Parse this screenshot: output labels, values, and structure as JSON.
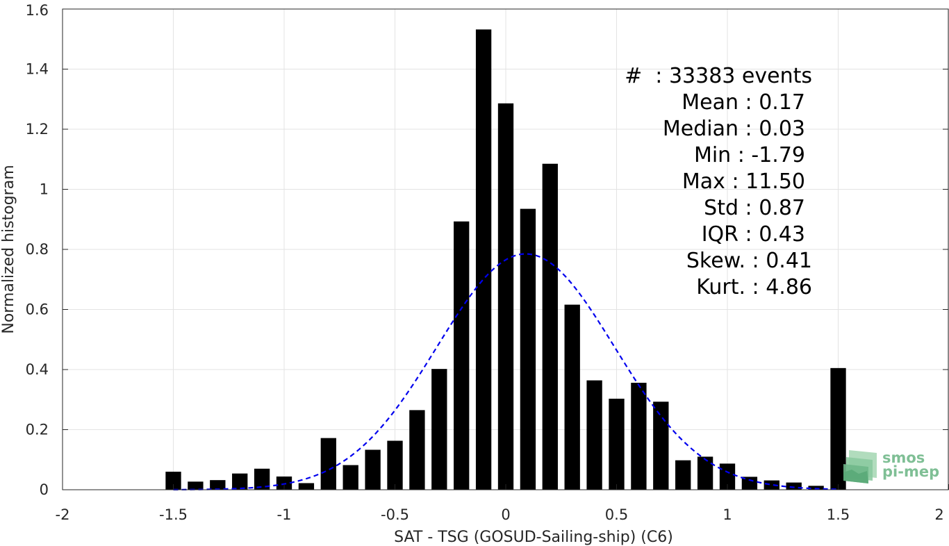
{
  "chart_data": {
    "type": "bar",
    "xlabel": "SAT - TSG (GOSUD-Sailing-ship) (C6)",
    "ylabel": "Normalized histogram",
    "xlim": [
      -2,
      2
    ],
    "ylim": [
      0,
      1.6
    ],
    "xticks": [
      "-2",
      "-1.5",
      "-1",
      "-0.5",
      "0",
      "0.5",
      "1",
      "1.5",
      "2"
    ],
    "yticks": [
      "0",
      "0.2",
      "0.4",
      "0.6",
      "0.8",
      "1",
      "1.2",
      "1.4",
      "1.6"
    ],
    "grid": true,
    "bar_color": "#000000",
    "bin_width": 0.1,
    "x": [
      -1.5,
      -1.4,
      -1.3,
      -1.2,
      -1.1,
      -1.0,
      -0.9,
      -0.8,
      -0.7,
      -0.6,
      -0.5,
      -0.4,
      -0.3,
      -0.2,
      -0.1,
      0.0,
      0.1,
      0.2,
      0.3,
      0.4,
      0.5,
      0.6,
      0.7,
      0.8,
      0.9,
      1.0,
      1.1,
      1.2,
      1.3,
      1.4,
      1.5
    ],
    "values": [
      0.06,
      0.027,
      0.032,
      0.054,
      0.07,
      0.044,
      0.022,
      0.172,
      0.082,
      0.133,
      0.163,
      0.265,
      0.402,
      0.893,
      1.532,
      1.286,
      0.935,
      1.085,
      0.616,
      0.364,
      0.303,
      0.356,
      0.293,
      0.098,
      0.11,
      0.087,
      0.043,
      0.031,
      0.024,
      0.013,
      0.405
    ],
    "fit": {
      "type": "gaussian",
      "mean": 0.09,
      "amplitude": 0.785,
      "sigma": 0.4,
      "range": [
        -1.5,
        1.5
      ],
      "color": "#0000ee",
      "style": "dashed"
    },
    "annotations": [
      "#  : 33383 events",
      "Mean : 0.17",
      "Median : 0.03",
      "Min : -1.79",
      "Max : 11.50",
      "Std : 0.87",
      "IQR : 0.43",
      "Skew. : 0.41",
      "Kurt. : 4.86"
    ]
  },
  "logo": {
    "line1": "smos",
    "line2": "pi-mep",
    "color": "#7fbf95"
  }
}
